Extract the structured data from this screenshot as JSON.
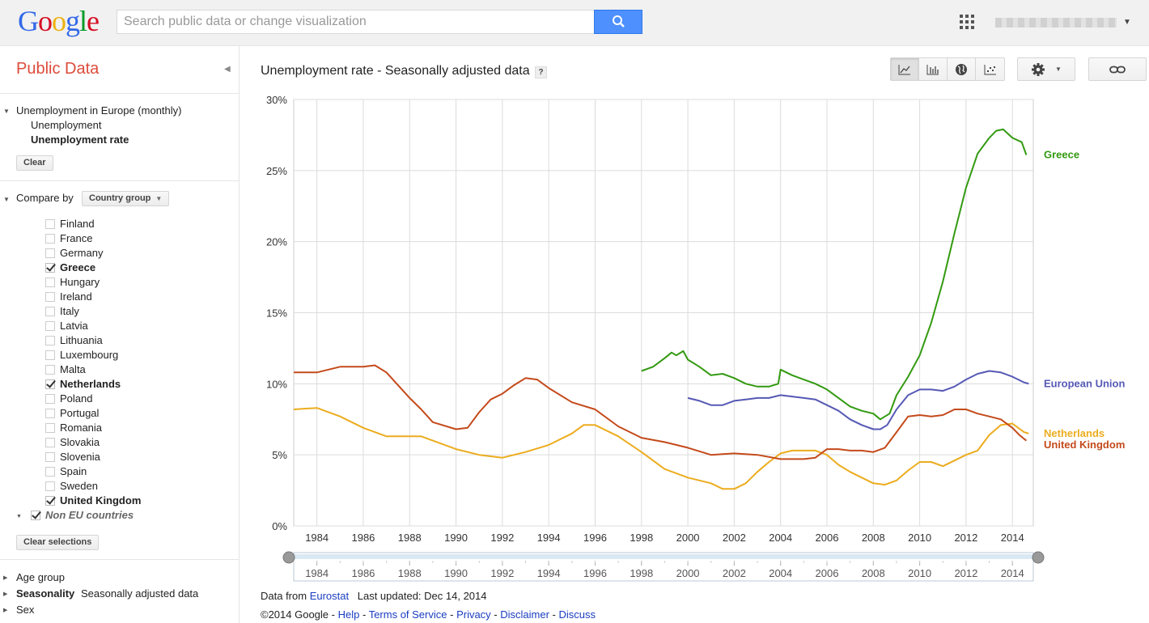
{
  "brand": {
    "logo_letters": [
      "G",
      "o",
      "o",
      "g",
      "l",
      "e"
    ],
    "logo_colors": [
      "#3369e8",
      "#d50f25",
      "#eeb211",
      "#3369e8",
      "#009925",
      "#d50f25"
    ]
  },
  "search": {
    "placeholder": "Search public data or change visualization"
  },
  "sidebar": {
    "title": "Public Data",
    "dataset": {
      "name": "Unemployment in Europe (monthly)",
      "metrics": [
        "Unemployment",
        "Unemployment rate"
      ],
      "selected_metric": "Unemployment rate"
    },
    "clear_label": "Clear",
    "compare_label": "Compare by",
    "compare_value": "Country group",
    "countries": [
      {
        "name": "Finland",
        "checked": false
      },
      {
        "name": "France",
        "checked": false
      },
      {
        "name": "Germany",
        "checked": false
      },
      {
        "name": "Greece",
        "checked": true
      },
      {
        "name": "Hungary",
        "checked": false
      },
      {
        "name": "Ireland",
        "checked": false
      },
      {
        "name": "Italy",
        "checked": false
      },
      {
        "name": "Latvia",
        "checked": false
      },
      {
        "name": "Lithuania",
        "checked": false
      },
      {
        "name": "Luxembourg",
        "checked": false
      },
      {
        "name": "Malta",
        "checked": false
      },
      {
        "name": "Netherlands",
        "checked": true
      },
      {
        "name": "Poland",
        "checked": false
      },
      {
        "name": "Portugal",
        "checked": false
      },
      {
        "name": "Romania",
        "checked": false
      },
      {
        "name": "Slovakia",
        "checked": false
      },
      {
        "name": "Slovenia",
        "checked": false
      },
      {
        "name": "Spain",
        "checked": false
      },
      {
        "name": "Sweden",
        "checked": false
      },
      {
        "name": "United Kingdom",
        "checked": true
      }
    ],
    "non_eu_label": "Non EU countries",
    "clear_selections_label": "Clear selections",
    "filters": [
      {
        "label": "Age group",
        "value": ""
      },
      {
        "label": "Seasonality",
        "value": "Seasonally adjusted data"
      },
      {
        "label": "Sex",
        "value": ""
      }
    ]
  },
  "main": {
    "title": "Unemployment rate - Seasonally adjusted data",
    "help": "?",
    "footer": {
      "data_from": "Data from",
      "source": "Eurostat",
      "last_updated": "Last updated: Dec 14, 2014",
      "copyright": "©2014 Google -",
      "links": [
        "Help",
        "Terms of Service",
        "Privacy",
        "Disclaimer",
        "Discuss"
      ]
    }
  },
  "chart_data": {
    "type": "line",
    "title": "Unemployment rate - Seasonally adjusted data",
    "xlabel": "",
    "ylabel": "",
    "xlim": [
      1983,
      2014.9
    ],
    "ylim": [
      0,
      30
    ],
    "y_ticks": [
      "0%",
      "5%",
      "10%",
      "15%",
      "20%",
      "25%",
      "30%"
    ],
    "x_ticks": [
      "1984",
      "1986",
      "1988",
      "1990",
      "1992",
      "1994",
      "1996",
      "1998",
      "2000",
      "2002",
      "2004",
      "2006",
      "2008",
      "2010",
      "2012",
      "2014"
    ],
    "series": [
      {
        "name": "Greece",
        "color": "#339a11",
        "x": [
          1998.0,
          1998.5,
          1999.0,
          1999.3,
          1999.5,
          1999.8,
          2000.0,
          2000.5,
          2001.0,
          2001.5,
          2002.0,
          2002.5,
          2003.0,
          2003.5,
          2003.9,
          2004.0,
          2004.5,
          2005.0,
          2005.5,
          2006.0,
          2006.5,
          2007.0,
          2007.5,
          2008.0,
          2008.3,
          2008.7,
          2009.0,
          2009.5,
          2010.0,
          2010.5,
          2011.0,
          2011.5,
          2012.0,
          2012.5,
          2013.0,
          2013.3,
          2013.6,
          2014.0,
          2014.4,
          2014.6
        ],
        "values": [
          10.9,
          11.2,
          11.8,
          12.2,
          12.0,
          12.3,
          11.7,
          11.2,
          10.6,
          10.7,
          10.4,
          10.0,
          9.8,
          9.8,
          10.0,
          11.0,
          10.6,
          10.3,
          10.0,
          9.6,
          9.0,
          8.4,
          8.1,
          7.9,
          7.5,
          7.9,
          9.2,
          10.5,
          12.0,
          14.3,
          17.2,
          20.6,
          23.8,
          26.2,
          27.3,
          27.8,
          27.9,
          27.3,
          27.0,
          26.1
        ]
      },
      {
        "name": "European Union",
        "color": "#5559b5",
        "x": [
          2000.0,
          2000.5,
          2001.0,
          2001.5,
          2002.0,
          2002.5,
          2003.0,
          2003.5,
          2004.0,
          2004.5,
          2005.0,
          2005.5,
          2006.0,
          2006.5,
          2007.0,
          2007.5,
          2008.0,
          2008.3,
          2008.6,
          2009.0,
          2009.5,
          2010.0,
          2010.5,
          2011.0,
          2011.5,
          2012.0,
          2012.5,
          2013.0,
          2013.5,
          2014.0,
          2014.5,
          2014.7
        ],
        "values": [
          9.0,
          8.8,
          8.5,
          8.5,
          8.8,
          8.9,
          9.0,
          9.0,
          9.2,
          9.1,
          9.0,
          8.9,
          8.5,
          8.1,
          7.5,
          7.1,
          6.8,
          6.8,
          7.1,
          8.2,
          9.2,
          9.6,
          9.6,
          9.5,
          9.8,
          10.3,
          10.7,
          10.9,
          10.8,
          10.5,
          10.1,
          10.0
        ]
      },
      {
        "name": "Netherlands",
        "color": "#ecac1e",
        "x": [
          1983.0,
          1984.0,
          1985.0,
          1986.0,
          1987.0,
          1988.0,
          1988.5,
          1989.0,
          1990.0,
          1991.0,
          1992.0,
          1993.0,
          1994.0,
          1995.0,
          1995.5,
          1996.0,
          1997.0,
          1998.0,
          1999.0,
          2000.0,
          2001.0,
          2001.5,
          2002.0,
          2002.5,
          2003.0,
          2003.5,
          2004.0,
          2004.5,
          2005.0,
          2005.5,
          2006.0,
          2006.5,
          2007.0,
          2007.5,
          2008.0,
          2008.5,
          2009.0,
          2009.5,
          2010.0,
          2010.5,
          2011.0,
          2011.5,
          2012.0,
          2012.5,
          2013.0,
          2013.5,
          2014.0,
          2014.5,
          2014.7
        ],
        "values": [
          8.2,
          8.3,
          7.7,
          6.9,
          6.3,
          6.3,
          6.3,
          6.0,
          5.4,
          5.0,
          4.8,
          5.2,
          5.7,
          6.5,
          7.1,
          7.1,
          6.3,
          5.2,
          4.0,
          3.4,
          3.0,
          2.6,
          2.6,
          3.0,
          3.8,
          4.5,
          5.1,
          5.3,
          5.3,
          5.3,
          5.0,
          4.3,
          3.8,
          3.4,
          3.0,
          2.9,
          3.2,
          3.9,
          4.5,
          4.5,
          4.2,
          4.6,
          5.0,
          5.3,
          6.4,
          7.1,
          7.2,
          6.6,
          6.5
        ]
      },
      {
        "name": "United Kingdom",
        "color": "#c44a1b",
        "x": [
          1983.0,
          1984.0,
          1985.0,
          1986.0,
          1986.5,
          1987.0,
          1988.0,
          1988.5,
          1989.0,
          1990.0,
          1990.5,
          1991.0,
          1991.5,
          1992.0,
          1992.5,
          1993.0,
          1993.5,
          1994.0,
          1995.0,
          1996.0,
          1997.0,
          1998.0,
          1999.0,
          2000.0,
          2001.0,
          2002.0,
          2003.0,
          2004.0,
          2005.0,
          2005.5,
          2006.0,
          2006.5,
          2007.0,
          2007.5,
          2008.0,
          2008.5,
          2009.0,
          2009.5,
          2010.0,
          2010.5,
          2011.0,
          2011.5,
          2012.0,
          2012.5,
          2013.0,
          2013.5,
          2014.0,
          2014.3,
          2014.6
        ],
        "values": [
          10.8,
          10.8,
          11.2,
          11.2,
          11.3,
          10.8,
          9.0,
          8.2,
          7.3,
          6.8,
          6.9,
          8.0,
          8.9,
          9.3,
          9.9,
          10.4,
          10.3,
          9.7,
          8.7,
          8.2,
          7.0,
          6.2,
          5.9,
          5.5,
          5.0,
          5.1,
          5.0,
          4.7,
          4.7,
          4.8,
          5.4,
          5.4,
          5.3,
          5.3,
          5.2,
          5.5,
          6.6,
          7.7,
          7.8,
          7.7,
          7.8,
          8.2,
          8.2,
          7.9,
          7.7,
          7.5,
          6.9,
          6.4,
          6.0
        ]
      }
    ],
    "legend_position": "right",
    "timeline_ticks": [
      "1984",
      "1986",
      "1988",
      "1990",
      "1992",
      "1994",
      "1996",
      "1998",
      "2000",
      "2002",
      "2004",
      "2006",
      "2008",
      "2010",
      "2012",
      "2014"
    ]
  }
}
